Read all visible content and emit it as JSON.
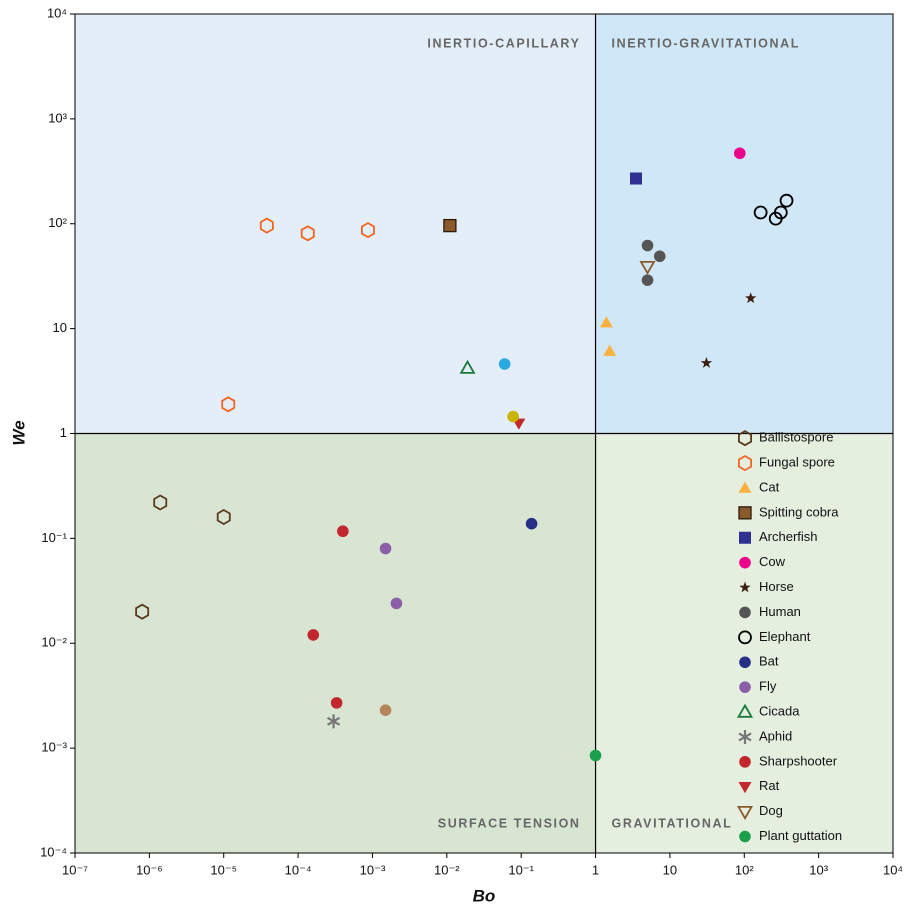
{
  "chart_data": {
    "type": "scatter",
    "xlabel": "Bo",
    "ylabel": "We",
    "xscale": "log",
    "yscale": "log",
    "xlim": [
      1e-07,
      10000
    ],
    "ylim": [
      0.0001,
      10000
    ],
    "xticks": [
      {
        "value": 1e-07,
        "label": "10⁻⁷"
      },
      {
        "value": 1e-06,
        "label": "10⁻⁶"
      },
      {
        "value": 1e-05,
        "label": "10⁻⁵"
      },
      {
        "value": 0.0001,
        "label": "10⁻⁴"
      },
      {
        "value": 0.001,
        "label": "10⁻³"
      },
      {
        "value": 0.01,
        "label": "10⁻²"
      },
      {
        "value": 0.1,
        "label": "10⁻¹"
      },
      1,
      10,
      {
        "value": 100,
        "label": "10²"
      },
      {
        "value": 1000,
        "label": "10³"
      },
      {
        "value": 10000,
        "label": "10⁴"
      }
    ],
    "yticks": [
      {
        "value": 0.0001,
        "label": "10⁻⁴"
      },
      {
        "value": 0.001,
        "label": "10⁻³"
      },
      {
        "value": 0.01,
        "label": "10⁻²"
      },
      {
        "value": 0.1,
        "label": "10⁻¹"
      },
      1,
      10,
      {
        "value": 100,
        "label": "10²"
      },
      {
        "value": 1000,
        "label": "10³"
      },
      {
        "value": 10000,
        "label": "10⁴"
      }
    ],
    "x_divider": 1,
    "y_divider": 1,
    "regions": [
      {
        "label": "INERTIO-CAPILLARY",
        "quadrant": "top-left",
        "color": "#e4eef8"
      },
      {
        "label": "INERTIO-GRAVITATIONAL",
        "quadrant": "top-right",
        "color": "#cfe7f6"
      },
      {
        "label": "SURFACE TENSION",
        "quadrant": "bottom-left",
        "color": "#d8e5d2"
      },
      {
        "label": "GRAVITATIONAL",
        "quadrant": "bottom-right",
        "color": "#e5efdf"
      }
    ],
    "legend": "lower right",
    "series": [
      {
        "name": "Ballistospore",
        "marker": "hexagon-open",
        "color": "#5b3b1f",
        "x": [
          1.4e-06,
          1e-05,
          8e-07
        ],
        "values": [
          0.22,
          0.16,
          0.02
        ]
      },
      {
        "name": "Fungal spore",
        "marker": "hexagon-open",
        "color": "#f26522",
        "x": [
          1.15e-05,
          3.8e-05,
          0.000135,
          0.00087
        ],
        "values": [
          1.9,
          96,
          81,
          87
        ]
      },
      {
        "name": "Cat",
        "marker": "triangle",
        "color": "#fbb040",
        "x": [
          1.4,
          1.55
        ],
        "values": [
          11.4,
          6.1
        ]
      },
      {
        "name": "Spitting cobra",
        "marker": "square-edged",
        "color": "#8b5a2b",
        "x": [
          0.011
        ],
        "values": [
          96
        ]
      },
      {
        "name": "Archerfish",
        "marker": "square",
        "color": "#2e3192",
        "x": [
          3.5
        ],
        "values": [
          270
        ]
      },
      {
        "name": "Cow",
        "marker": "circle",
        "color": "#ec008c",
        "x": [
          87
        ],
        "values": [
          470
        ]
      },
      {
        "name": "Horse",
        "marker": "star",
        "color": "#3a1f10",
        "x": [
          122,
          31
        ],
        "values": [
          19.5,
          4.7
        ]
      },
      {
        "name": "Human",
        "marker": "circle",
        "color": "#555555",
        "x": [
          5.0,
          7.3,
          5.0
        ],
        "values": [
          62,
          49,
          29
        ]
      },
      {
        "name": "Elephant",
        "marker": "circle-open",
        "color": "#000000",
        "x": [
          166,
          265,
          310,
          370
        ],
        "values": [
          128,
          112,
          128,
          166
        ]
      },
      {
        "name": "Bat",
        "marker": "circle",
        "color": "#262f86",
        "x": [
          0.138
        ],
        "values": [
          0.138
        ]
      },
      {
        "name": "Fly",
        "marker": "circle",
        "color": "#8a5fa8",
        "x": [
          0.0015,
          0.0021
        ],
        "values": [
          0.08,
          0.024
        ]
      },
      {
        "name": "Cicada",
        "marker": "triangle-open",
        "color": "#1a7a3a",
        "x": [
          0.019
        ],
        "values": [
          4.2
        ]
      },
      {
        "name": "Aphid",
        "marker": "asterisk",
        "color": "#777777",
        "x": [
          0.0003
        ],
        "values": [
          0.0018
        ]
      },
      {
        "name": "Sharpshooter",
        "marker": "circle",
        "color": "#c1272d",
        "x": [
          0.0004,
          0.00016,
          0.00033
        ],
        "values": [
          0.117,
          0.012,
          0.0027
        ]
      },
      {
        "name": "Rat",
        "marker": "triangle-down",
        "color": "#c1272d",
        "x": [
          0.093
        ],
        "values": [
          1.25
        ]
      },
      {
        "name": "Dog",
        "marker": "triangle-down-open",
        "color": "#8b5a2b",
        "x": [
          5.0
        ],
        "values": [
          39
        ]
      },
      {
        "name": "Plant guttation",
        "marker": "circle",
        "color": "#1aa04a",
        "x": [
          1.0
        ],
        "values": [
          0.00085
        ]
      },
      {
        "marker": "circle",
        "color": "#b5845a",
        "x": [
          0.0015
        ],
        "values": [
          0.0023
        ]
      },
      {
        "marker": "circle",
        "color": "#c8b400",
        "x": [
          0.078
        ],
        "values": [
          1.45
        ]
      },
      {
        "marker": "circle",
        "color": "#29aae1",
        "x": [
          0.06
        ],
        "values": [
          4.6
        ]
      }
    ]
  }
}
